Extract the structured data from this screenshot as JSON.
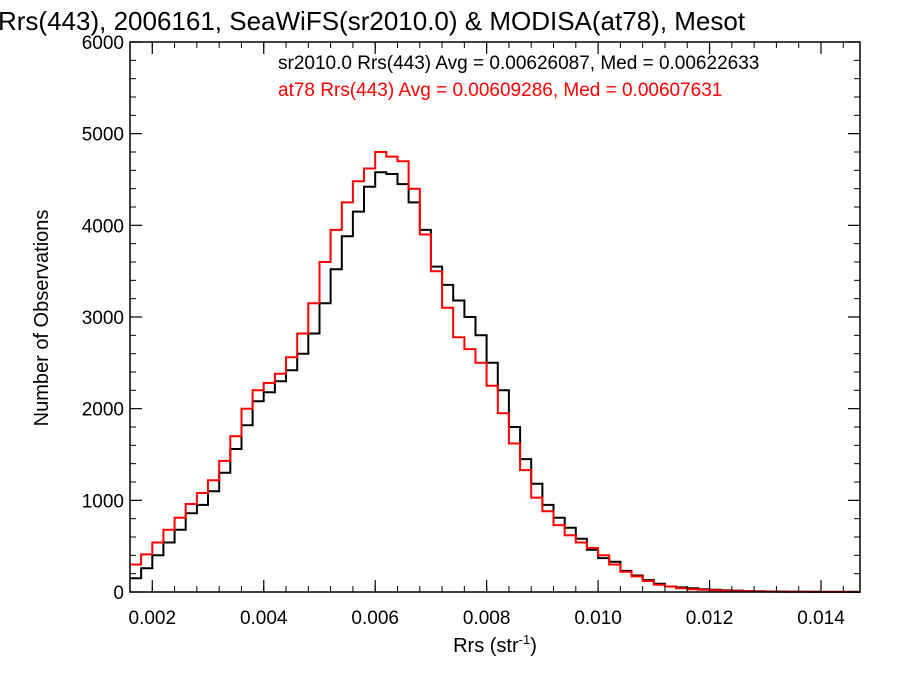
{
  "chart_data": {
    "type": "line",
    "title": "Rrs(443), 2006161, SeaWiFS(sr2010.0) & MODISA(at78), Mesot",
    "xlabel_base": "Rrs (str",
    "xlabel_sup": "-1",
    "xlabel_close": ")",
    "ylabel": "Number of Observations",
    "xlim": [
      0.0016,
      0.0147
    ],
    "ylim": [
      0,
      6000
    ],
    "x_ticks": [
      {
        "value": 0.002,
        "label": "0.002"
      },
      {
        "value": 0.004,
        "label": "0.004"
      },
      {
        "value": 0.006,
        "label": "0.006"
      },
      {
        "value": 0.008,
        "label": "0.008"
      },
      {
        "value": 0.01,
        "label": "0.010"
      },
      {
        "value": 0.012,
        "label": "0.012"
      },
      {
        "value": 0.014,
        "label": "0.014"
      }
    ],
    "y_ticks": [
      {
        "value": 0,
        "label": "0"
      },
      {
        "value": 1000,
        "label": "1000"
      },
      {
        "value": 2000,
        "label": "2000"
      },
      {
        "value": 3000,
        "label": "3000"
      },
      {
        "value": 4000,
        "label": "4000"
      },
      {
        "value": 5000,
        "label": "5000"
      },
      {
        "value": 6000,
        "label": "6000"
      }
    ],
    "grid": false,
    "legend_position": "top-right",
    "series": [
      {
        "name": "sr2010.0 Rrs(443) Avg = 0.00626087, Med = 0.00622633",
        "color": "#000000",
        "x": [
          0.0016,
          0.0018,
          0.002,
          0.0022,
          0.0024,
          0.0026,
          0.0028,
          0.003,
          0.0032,
          0.0034,
          0.0036,
          0.0038,
          0.004,
          0.0042,
          0.0044,
          0.0046,
          0.0048,
          0.005,
          0.0052,
          0.0054,
          0.0056,
          0.0058,
          0.006,
          0.0062,
          0.0064,
          0.0066,
          0.0068,
          0.007,
          0.0072,
          0.0074,
          0.0076,
          0.0078,
          0.008,
          0.0082,
          0.0084,
          0.0086,
          0.0088,
          0.009,
          0.0092,
          0.0094,
          0.0096,
          0.0098,
          0.01,
          0.0102,
          0.0104,
          0.0106,
          0.0108,
          0.011,
          0.0112,
          0.0114,
          0.0116,
          0.0118,
          0.012,
          0.0122,
          0.0124,
          0.0126,
          0.0128,
          0.013,
          0.0132,
          0.0134,
          0.0136,
          0.0138,
          0.014,
          0.0142,
          0.0144,
          0.0146
        ],
        "values": [
          150,
          260,
          400,
          540,
          680,
          860,
          950,
          1100,
          1300,
          1560,
          1820,
          2080,
          2180,
          2300,
          2420,
          2600,
          2820,
          3150,
          3520,
          3880,
          4150,
          4420,
          4580,
          4560,
          4450,
          4250,
          3950,
          3550,
          3350,
          3180,
          3000,
          2800,
          2500,
          2200,
          1800,
          1450,
          1180,
          950,
          810,
          700,
          580,
          460,
          370,
          330,
          230,
          180,
          130,
          90,
          60,
          50,
          40,
          30,
          25,
          20,
          15,
          10,
          8,
          5,
          4,
          3,
          2,
          2,
          1,
          1,
          1,
          1
        ]
      },
      {
        "name": "at78 Rrs(443) Avg = 0.00609286, Med = 0.00607631",
        "color": "#ff0000",
        "x": [
          0.0016,
          0.0018,
          0.002,
          0.0022,
          0.0024,
          0.0026,
          0.0028,
          0.003,
          0.0032,
          0.0034,
          0.0036,
          0.0038,
          0.004,
          0.0042,
          0.0044,
          0.0046,
          0.0048,
          0.005,
          0.0052,
          0.0054,
          0.0056,
          0.0058,
          0.006,
          0.0062,
          0.0064,
          0.0066,
          0.0068,
          0.007,
          0.0072,
          0.0074,
          0.0076,
          0.0078,
          0.008,
          0.0082,
          0.0084,
          0.0086,
          0.0088,
          0.009,
          0.0092,
          0.0094,
          0.0096,
          0.0098,
          0.01,
          0.0102,
          0.0104,
          0.0106,
          0.0108,
          0.011,
          0.0112,
          0.0114,
          0.0116,
          0.0118,
          0.012,
          0.0122,
          0.0124,
          0.0126,
          0.0128,
          0.013,
          0.0132,
          0.0134,
          0.0136,
          0.0138,
          0.014,
          0.0142,
          0.0144,
          0.0146
        ],
        "values": [
          300,
          410,
          540,
          680,
          810,
          960,
          1080,
          1220,
          1430,
          1700,
          2000,
          2200,
          2280,
          2380,
          2560,
          2820,
          3150,
          3600,
          3950,
          4250,
          4480,
          4620,
          4800,
          4750,
          4700,
          4400,
          3900,
          3500,
          3100,
          2780,
          2650,
          2500,
          2250,
          1950,
          1620,
          1330,
          1030,
          880,
          730,
          620,
          540,
          480,
          400,
          300,
          220,
          170,
          120,
          80,
          60,
          40,
          30,
          25,
          20,
          15,
          10,
          8,
          5,
          4,
          3,
          2,
          2,
          1,
          1,
          1,
          1,
          1
        ]
      }
    ]
  }
}
